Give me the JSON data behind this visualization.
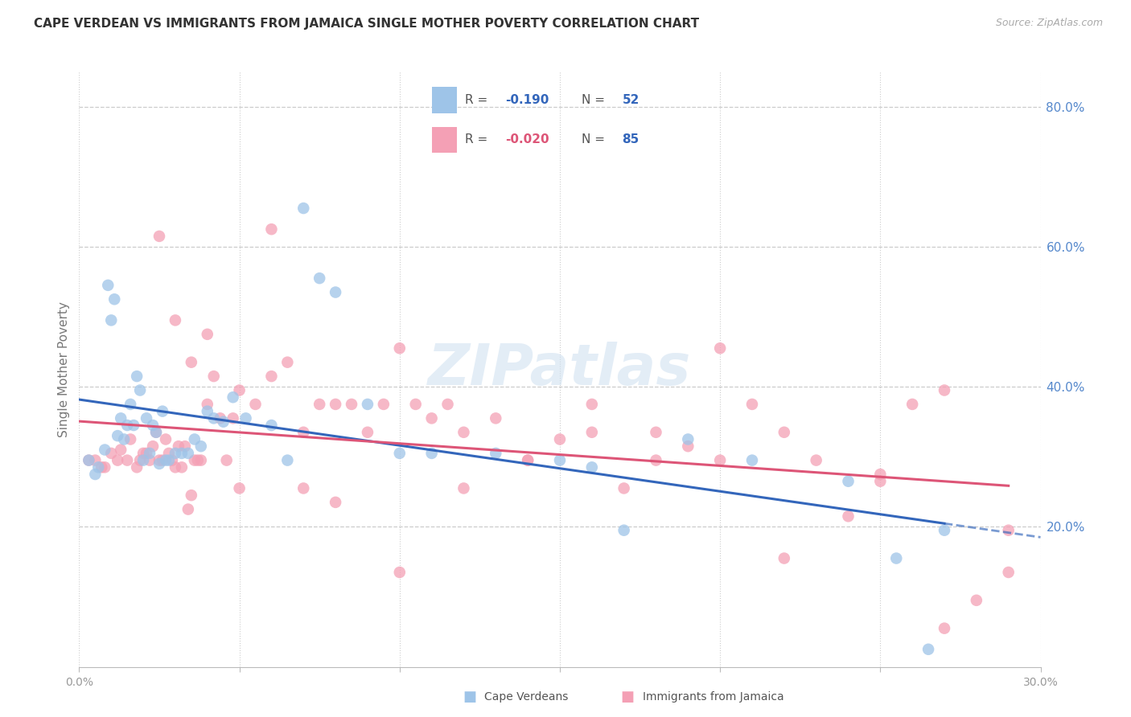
{
  "title": "CAPE VERDEAN VS IMMIGRANTS FROM JAMAICA SINGLE MOTHER POVERTY CORRELATION CHART",
  "source": "Source: ZipAtlas.com",
  "ylabel": "Single Mother Poverty",
  "xlim": [
    0.0,
    0.3
  ],
  "ylim": [
    0.0,
    0.85
  ],
  "x_ticks": [
    0.0,
    0.05,
    0.1,
    0.15,
    0.2,
    0.25,
    0.3
  ],
  "x_tick_labels": [
    "0.0%",
    "",
    "",
    "",
    "",
    "",
    "30.0%"
  ],
  "y_ticks_right": [
    0.2,
    0.4,
    0.6,
    0.8
  ],
  "y_tick_labels_right": [
    "20.0%",
    "40.0%",
    "60.0%",
    "80.0%"
  ],
  "blue_R": "-0.190",
  "blue_N": "52",
  "pink_R": "-0.020",
  "pink_N": "85",
  "blue_color": "#9ec4e8",
  "pink_color": "#f4a0b5",
  "blue_line_color": "#3366bb",
  "pink_line_color": "#dd5577",
  "grid_color": "#cccccc",
  "right_axis_color": "#5588cc",
  "watermark": "ZIPatlas",
  "legend_label_blue": "Cape Verdeans",
  "legend_label_pink": "Immigrants from Jamaica",
  "blue_scatter_x": [
    0.003,
    0.005,
    0.006,
    0.008,
    0.009,
    0.01,
    0.011,
    0.012,
    0.013,
    0.014,
    0.015,
    0.016,
    0.017,
    0.018,
    0.019,
    0.02,
    0.021,
    0.022,
    0.023,
    0.024,
    0.025,
    0.026,
    0.027,
    0.028,
    0.03,
    0.032,
    0.034,
    0.036,
    0.038,
    0.04,
    0.042,
    0.045,
    0.048,
    0.052,
    0.06,
    0.065,
    0.07,
    0.075,
    0.08,
    0.09,
    0.1,
    0.11,
    0.13,
    0.15,
    0.16,
    0.17,
    0.19,
    0.21,
    0.24,
    0.255,
    0.265,
    0.27
  ],
  "blue_scatter_y": [
    0.295,
    0.275,
    0.285,
    0.31,
    0.545,
    0.495,
    0.525,
    0.33,
    0.355,
    0.325,
    0.345,
    0.375,
    0.345,
    0.415,
    0.395,
    0.295,
    0.355,
    0.305,
    0.345,
    0.335,
    0.29,
    0.365,
    0.295,
    0.295,
    0.305,
    0.305,
    0.305,
    0.325,
    0.315,
    0.365,
    0.355,
    0.35,
    0.385,
    0.355,
    0.345,
    0.295,
    0.655,
    0.555,
    0.535,
    0.375,
    0.305,
    0.305,
    0.305,
    0.295,
    0.285,
    0.195,
    0.325,
    0.295,
    0.265,
    0.155,
    0.025,
    0.195
  ],
  "pink_scatter_x": [
    0.003,
    0.005,
    0.007,
    0.008,
    0.01,
    0.012,
    0.013,
    0.015,
    0.016,
    0.018,
    0.019,
    0.02,
    0.021,
    0.022,
    0.023,
    0.024,
    0.025,
    0.026,
    0.027,
    0.028,
    0.029,
    0.03,
    0.031,
    0.032,
    0.033,
    0.034,
    0.035,
    0.036,
    0.037,
    0.038,
    0.04,
    0.042,
    0.044,
    0.046,
    0.048,
    0.05,
    0.055,
    0.06,
    0.065,
    0.07,
    0.075,
    0.08,
    0.085,
    0.09,
    0.095,
    0.1,
    0.105,
    0.11,
    0.115,
    0.12,
    0.13,
    0.14,
    0.15,
    0.16,
    0.17,
    0.18,
    0.19,
    0.2,
    0.21,
    0.22,
    0.23,
    0.24,
    0.25,
    0.26,
    0.27,
    0.28,
    0.29,
    0.025,
    0.03,
    0.035,
    0.04,
    0.05,
    0.06,
    0.07,
    0.08,
    0.1,
    0.12,
    0.14,
    0.16,
    0.18,
    0.2,
    0.22,
    0.25,
    0.27,
    0.29
  ],
  "pink_scatter_y": [
    0.295,
    0.295,
    0.285,
    0.285,
    0.305,
    0.295,
    0.31,
    0.295,
    0.325,
    0.285,
    0.295,
    0.305,
    0.305,
    0.295,
    0.315,
    0.335,
    0.295,
    0.295,
    0.325,
    0.305,
    0.295,
    0.285,
    0.315,
    0.285,
    0.315,
    0.225,
    0.245,
    0.295,
    0.295,
    0.295,
    0.375,
    0.415,
    0.355,
    0.295,
    0.355,
    0.395,
    0.375,
    0.415,
    0.435,
    0.335,
    0.375,
    0.375,
    0.375,
    0.335,
    0.375,
    0.455,
    0.375,
    0.355,
    0.375,
    0.335,
    0.355,
    0.295,
    0.325,
    0.335,
    0.255,
    0.295,
    0.315,
    0.455,
    0.375,
    0.335,
    0.295,
    0.215,
    0.265,
    0.375,
    0.395,
    0.095,
    0.135,
    0.615,
    0.495,
    0.435,
    0.475,
    0.255,
    0.625,
    0.255,
    0.235,
    0.135,
    0.255,
    0.295,
    0.375,
    0.335,
    0.295,
    0.155,
    0.275,
    0.055,
    0.195
  ]
}
